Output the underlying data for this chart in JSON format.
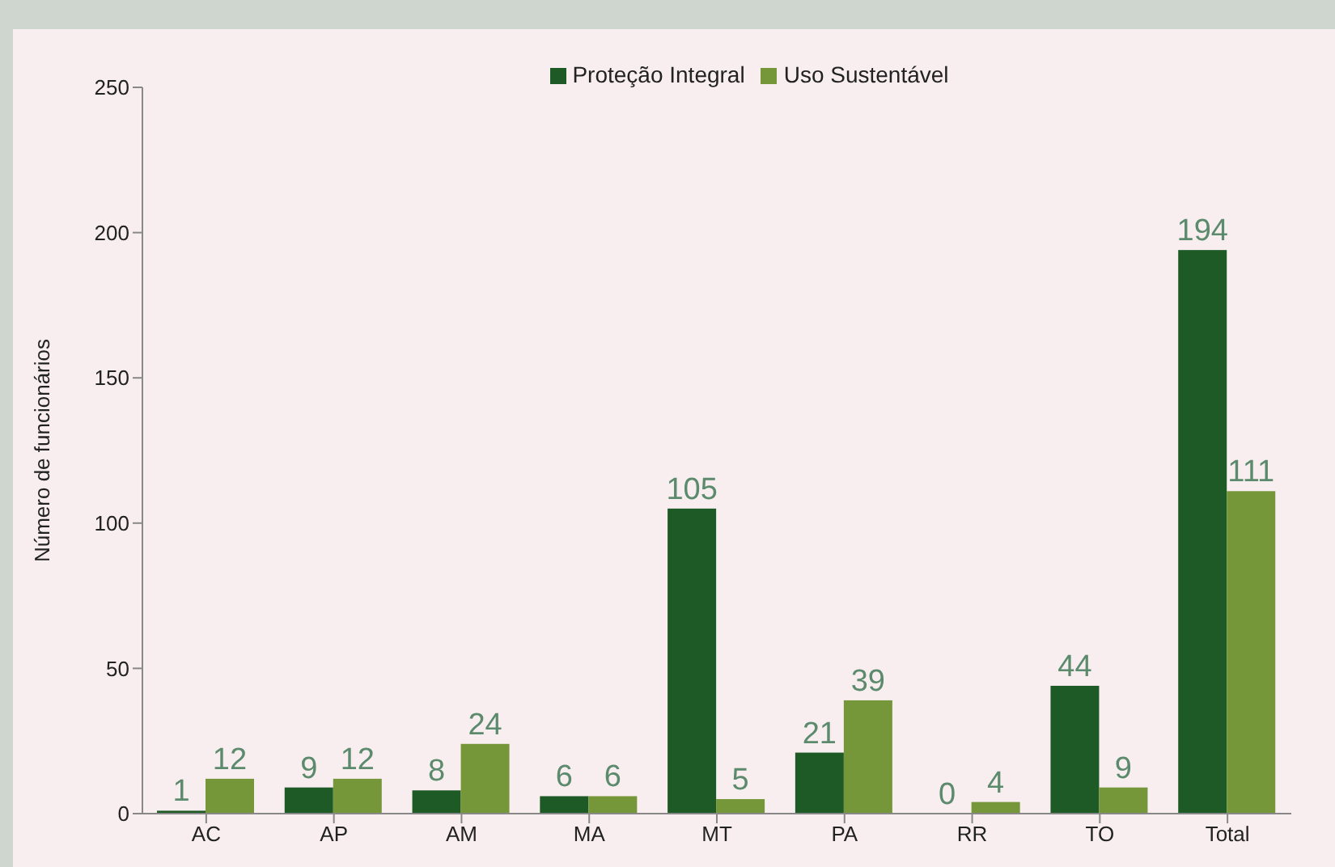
{
  "chart_data": {
    "type": "bar",
    "ylabel": "Número de funcionários",
    "categories": [
      "AC",
      "AP",
      "AM",
      "MA",
      "MT",
      "PA",
      "RR",
      "TO",
      "Total"
    ],
    "series": [
      {
        "name": "Proteção Integral",
        "color": "#1d5a25",
        "values": [
          1,
          9,
          8,
          6,
          105,
          21,
          0,
          44,
          194
        ]
      },
      {
        "name": "Uso Sustentável",
        "color": "#76963a",
        "values": [
          12,
          12,
          24,
          6,
          5,
          39,
          4,
          9,
          111
        ]
      }
    ],
    "ylim": [
      0,
      250
    ],
    "yticks": [
      0,
      50,
      100,
      150,
      200,
      250
    ],
    "data_labels": true,
    "legend": "top",
    "grid": false
  }
}
